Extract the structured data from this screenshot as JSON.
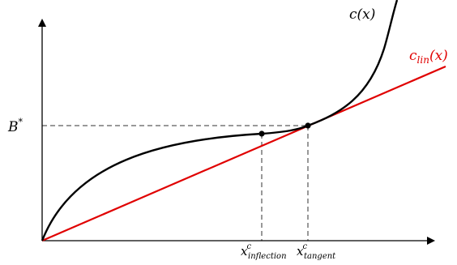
{
  "figure": {
    "curve_label": "c(x)",
    "line_label": "c",
    "line_label_sub": "lin",
    "line_label_arg": "(x)",
    "y_marker_label": "B",
    "y_marker_sup": "*",
    "x_inflection_base": "x",
    "x_inflection_sup": "c",
    "x_inflection_sub": "inflection",
    "x_tangent_base": "x",
    "x_tangent_sup": "c",
    "x_tangent_sub": "tangent"
  },
  "colors": {
    "axis": "#000000",
    "curve": "#000000",
    "tangent_line": "#e00000",
    "guide_lines": "#333333"
  }
}
